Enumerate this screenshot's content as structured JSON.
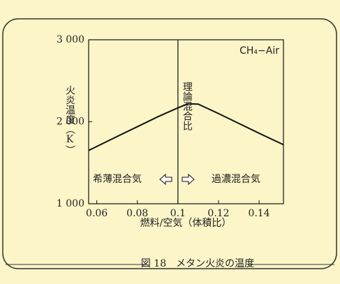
{
  "chart_data": {
    "type": "line",
    "x_label": "燃料/空気（体積比）",
    "y_label": "火炎温度（K）",
    "caption": "図 18　メタン火炎の温度",
    "annotations": {
      "gas": "CH₄−Air",
      "lean": "希薄混合気",
      "rich": "過濃混合気"
    },
    "reference_line": {
      "x": 0.1,
      "label": "理論混合比"
    },
    "x": [
      0.056,
      0.07,
      0.08,
      0.09,
      0.1,
      0.105,
      0.11,
      0.12,
      0.13,
      0.14,
      0.152
    ],
    "series": [
      {
        "color": "#111111",
        "values": [
          1650,
          1820,
          1940,
          2060,
          2170,
          2220,
          2215,
          2100,
          1980,
          1860,
          1720
        ]
      }
    ],
    "xlim": [
      0.056,
      0.152
    ],
    "xticks": [
      0.06,
      0.08,
      0.1,
      0.12,
      0.14
    ],
    "ylim": [
      1000,
      3000
    ],
    "yticks": [
      {
        "value": 1000,
        "label": "1 000"
      },
      {
        "value": 2000,
        "label": "2 000"
      },
      {
        "value": 3000,
        "label": "3 000"
      }
    ]
  }
}
